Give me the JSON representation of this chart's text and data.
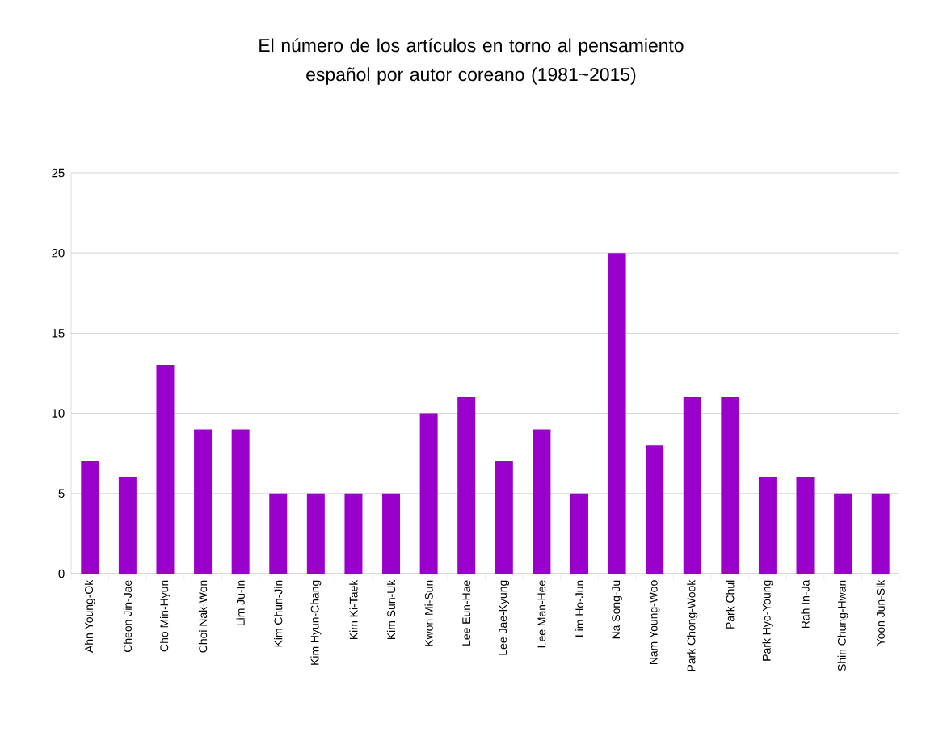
{
  "chart_data": {
    "type": "bar",
    "title": "El número de los artículos en torno al pensamiento español por autor coreano (1981~2015)",
    "categories": [
      "Ahn Young-Ok",
      "Cheon Jin-Jae",
      "Cho Min-Hyun",
      "Choi Nak-Won",
      "Lim Ju-In",
      "Kim Chun-Jin",
      "Kim Hyun-Chang",
      "Kim Ki-Taek",
      "Kim Sun-Uk",
      "Kwon Mi-Sun",
      "Lee Eun-Hae",
      "Lee Jae-Kyung",
      "Lee Man-Hee",
      "Lim Ho-Jun",
      "Na Song-Ju",
      "Nam Young-Woo",
      "Park Chong-Wook",
      "Park Chul",
      "Park Hyo-Young",
      "Rah In-Ja",
      "Shin Chung-Hwan",
      "Yoon Jun-Sik"
    ],
    "values": [
      7,
      6,
      13,
      9,
      9,
      5,
      5,
      5,
      5,
      10,
      11,
      7,
      9,
      5,
      20,
      8,
      11,
      11,
      6,
      6,
      5,
      5
    ],
    "color": "#9900cc",
    "ylim": [
      0,
      25
    ],
    "yticks": [
      0,
      5,
      10,
      15,
      20,
      25
    ],
    "grid": "y"
  }
}
